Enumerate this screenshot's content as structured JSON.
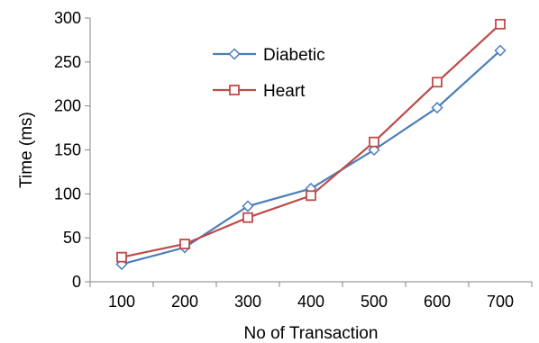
{
  "chart_data": {
    "type": "line",
    "xlabel": "No of Transaction",
    "ylabel": "Time (ms)",
    "x": [
      100,
      200,
      300,
      400,
      500,
      600,
      700
    ],
    "ylim": [
      0,
      300
    ],
    "yticks": [
      0,
      50,
      100,
      150,
      200,
      250,
      300
    ],
    "grid": false,
    "legend_position": "top-center",
    "series": [
      {
        "name": "Diabetic",
        "color": "#4a7ebb",
        "marker": "diamond",
        "values": [
          20,
          39,
          86,
          106,
          150,
          198,
          263
        ]
      },
      {
        "name": "Heart",
        "color": "#be4b48",
        "marker": "square",
        "values": [
          28,
          43,
          73,
          98,
          159,
          227,
          293
        ]
      }
    ]
  }
}
